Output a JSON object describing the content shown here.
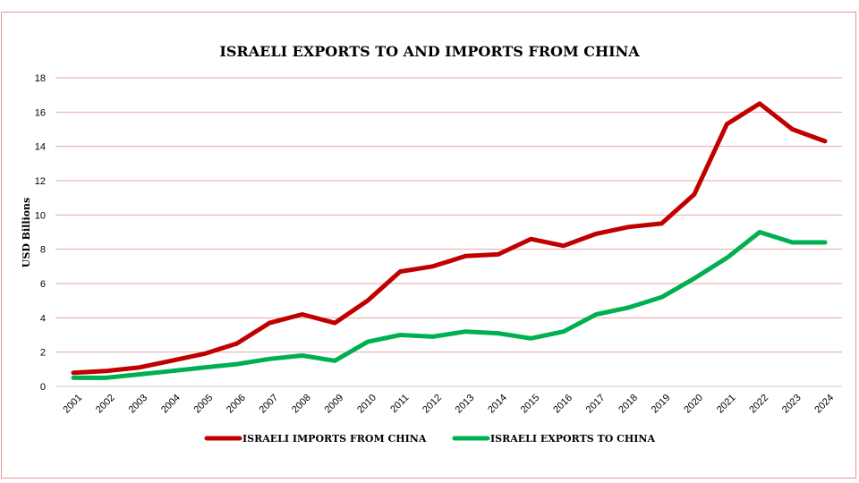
{
  "chart_data": {
    "type": "line",
    "title": "ISRAELI EXPORTS TO AND IMPORTS FROM CHINA",
    "xlabel": "",
    "ylabel": "USD Billions",
    "ylim": [
      0,
      18
    ],
    "yticks": [
      0,
      2,
      4,
      6,
      8,
      10,
      12,
      14,
      16,
      18
    ],
    "grid": true,
    "legend_position": "bottom",
    "categories": [
      "2001",
      "2002",
      "2003",
      "2004",
      "2005",
      "2006",
      "2007",
      "2008",
      "2009",
      "2010",
      "2011",
      "2012",
      "2013",
      "2014",
      "2015",
      "2016",
      "2017",
      "2018",
      "2019",
      "2020",
      "2021",
      "2022",
      "2023",
      "2024"
    ],
    "series": [
      {
        "name": "ISRAELI IMPORTS FROM CHINA",
        "color": "#c00000",
        "values": [
          0.8,
          0.9,
          1.1,
          1.5,
          1.9,
          2.5,
          3.7,
          4.2,
          3.7,
          5.0,
          6.7,
          7.0,
          7.6,
          7.7,
          8.6,
          8.2,
          8.9,
          9.3,
          9.5,
          11.2,
          15.3,
          16.5,
          15.0,
          14.3
        ]
      },
      {
        "name": "ISRAELI EXPORTS TO CHINA",
        "color": "#00b050",
        "values": [
          0.5,
          0.5,
          0.7,
          0.9,
          1.1,
          1.3,
          1.6,
          1.8,
          1.5,
          2.6,
          3.0,
          2.9,
          3.2,
          3.1,
          2.8,
          3.2,
          4.2,
          4.6,
          5.2,
          6.3,
          7.5,
          9.0,
          8.4,
          8.4
        ]
      }
    ]
  }
}
